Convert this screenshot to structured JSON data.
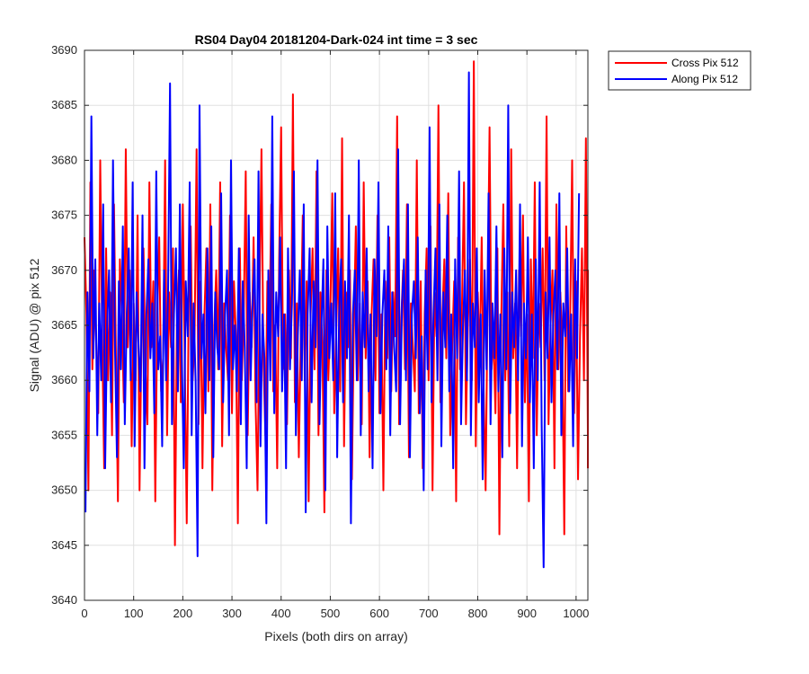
{
  "chart_data": {
    "type": "line",
    "title": "RS04 Day04 20181204-Dark-024 int time = 3 sec",
    "xlabel": "Pixels (both dirs on array)",
    "ylabel": "Signal (ADU) @ pix 512",
    "xlim": [
      0,
      1024
    ],
    "ylim": [
      3640,
      3690
    ],
    "xticks": [
      0,
      100,
      200,
      300,
      400,
      500,
      600,
      700,
      800,
      900,
      1000
    ],
    "yticks": [
      3640,
      3645,
      3650,
      3655,
      3660,
      3665,
      3670,
      3675,
      3680,
      3685,
      3690
    ],
    "grid": true,
    "legend_position": "outside-top-right",
    "series": [
      {
        "name": "Cross Pix 512",
        "color": "#ff0000",
        "x_start": 0,
        "x_step": 4,
        "values": [
          3673,
          3666,
          3650,
          3678,
          3661,
          3670,
          3663,
          3657,
          3680,
          3664,
          3652,
          3672,
          3660,
          3668,
          3655,
          3676,
          3662,
          3649,
          3671,
          3666,
          3658,
          3681,
          3663,
          3670,
          3654,
          3667,
          3660,
          3675,
          3650,
          3664,
          3672,
          3661,
          3656,
          3678,
          3663,
          3669,
          3649,
          3666,
          3673,
          3659,
          3662,
          3680,
          3655,
          3668,
          3663,
          3672,
          3645,
          3665,
          3670,
          3658,
          3676,
          3662,
          3647,
          3667,
          3674,
          3660,
          3664,
          3681,
          3656,
          3669,
          3652,
          3666,
          3672,
          3659,
          3676,
          3650,
          3665,
          3670,
          3661,
          3678,
          3654,
          3667,
          3663,
          3660,
          3675,
          3657,
          3669,
          3664,
          3647,
          3672,
          3660,
          3666,
          3679,
          3655,
          3668,
          3663,
          3673,
          3658,
          3650,
          3667,
          3681,
          3662,
          3655,
          3669,
          3664,
          3676,
          3659,
          3665,
          3652,
          3671,
          3683,
          3661,
          3666,
          3656,
          3670,
          3662,
          3686,
          3658,
          3667,
          3653,
          3664,
          3675,
          3660,
          3669,
          3649,
          3666,
          3672,
          3661,
          3679,
          3655,
          3668,
          3663,
          3648,
          3670,
          3660,
          3666,
          3677,
          3657,
          3664,
          3672,
          3659,
          3682,
          3654,
          3668,
          3663,
          3670,
          3651,
          3665,
          3674,
          3660,
          3667,
          3656,
          3678,
          3662,
          3669,
          3653,
          3666,
          3671,
          3660,
          3675,
          3657,
          3666,
          3650,
          3669,
          3662,
          3673,
          3659,
          3668,
          3664,
          3684,
          3656,
          3665,
          3670,
          3661,
          3676,
          3653,
          3667,
          3663,
          3659,
          3680,
          3657,
          3669,
          3652,
          3666,
          3672,
          3660,
          3674,
          3650,
          3668,
          3664,
          3685,
          3658,
          3666,
          3671,
          3662,
          3677,
          3655,
          3663,
          3669,
          3649,
          3673,
          3661,
          3667,
          3678,
          3656,
          3665,
          3671,
          3660,
          3689,
          3654,
          3668,
          3662,
          3673,
          3659,
          3650,
          3667,
          3683,
          3661,
          3664,
          3657,
          3672,
          3646,
          3666,
          3676,
          3660,
          3668,
          3654,
          3681,
          3662,
          3667,
          3652,
          3670,
          3664,
          3675,
          3658,
          3666,
          3649,
          3671,
          3662,
          3678,
          3655,
          3667,
          3663,
          3672,
          3660,
          3684,
          3656,
          3665,
          3670,
          3652,
          3676,
          3661,
          3668,
          3663,
          3646,
          3674,
          3659,
          3666,
          3680,
          3657,
          3669,
          3651,
          3664,
          3672,
          3660,
          3682,
          3655,
          3667,
          3662,
          3670,
          3658,
          3665,
          3652
        ]
      },
      {
        "name": "Along Pix 512",
        "color": "#0000ff",
        "x_start": 2,
        "x_step": 4,
        "values": [
          3648,
          3668,
          3659,
          3684,
          3662,
          3671,
          3655,
          3667,
          3660,
          3676,
          3652,
          3665,
          3670,
          3658,
          3680,
          3663,
          3653,
          3669,
          3661,
          3674,
          3656,
          3666,
          3672,
          3660,
          3678,
          3654,
          3668,
          3663,
          3659,
          3675,
          3652,
          3666,
          3671,
          3662,
          3667,
          3657,
          3679,
          3661,
          3664,
          3654,
          3670,
          3660,
          3668,
          3687,
          3656,
          3666,
          3672,
          3659,
          3676,
          3662,
          3652,
          3669,
          3664,
          3678,
          3655,
          3667,
          3660,
          3644,
          3685,
          3662,
          3666,
          3657,
          3672,
          3660,
          3674,
          3653,
          3668,
          3663,
          3661,
          3677,
          3658,
          3666,
          3670,
          3655,
          3680,
          3661,
          3665,
          3659,
          3672,
          3656,
          3669,
          3663,
          3652,
          3675,
          3660,
          3667,
          3671,
          3658,
          3679,
          3654,
          3666,
          3662,
          3647,
          3670,
          3660,
          3684,
          3657,
          3668,
          3664,
          3673,
          3659,
          3666,
          3652,
          3672,
          3661,
          3667,
          3679,
          3655,
          3664,
          3670,
          3660,
          3676,
          3648,
          3666,
          3672,
          3658,
          3669,
          3663,
          3680,
          3656,
          3665,
          3671,
          3650,
          3674,
          3662,
          3667,
          3660,
          3677,
          3653,
          3666,
          3671,
          3658,
          3669,
          3662,
          3675,
          3647,
          3666,
          3670,
          3660,
          3680,
          3655,
          3668,
          3663,
          3672,
          3659,
          3666,
          3652,
          3671,
          3664,
          3678,
          3657,
          3666,
          3670,
          3661,
          3674,
          3655,
          3668,
          3663,
          3659,
          3681,
          3656,
          3667,
          3671,
          3660,
          3676,
          3653,
          3666,
          3669,
          3662,
          3673,
          3657,
          3664,
          3650,
          3670,
          3661,
          3683,
          3658,
          3666,
          3672,
          3660,
          3676,
          3654,
          3668,
          3663,
          3675,
          3659,
          3666,
          3652,
          3671,
          3662,
          3679,
          3656,
          3665,
          3670,
          3660,
          3688,
          3655,
          3667,
          3663,
          3672,
          3658,
          3666,
          3651,
          3670,
          3661,
          3677,
          3656,
          3667,
          3662,
          3674,
          3659,
          3666,
          3653,
          3672,
          3661,
          3685,
          3657,
          3668,
          3663,
          3670,
          3660,
          3676,
          3654,
          3667,
          3662,
          3673,
          3658,
          3666,
          3652,
          3671,
          3660,
          3678,
          3656,
          3643,
          3668,
          3662,
          3673,
          3658,
          3666,
          3670,
          3661,
          3677,
          3655,
          3667,
          3664,
          3672,
          3659,
          3666,
          3654,
          3671,
          3662,
          3677
        ]
      }
    ]
  }
}
